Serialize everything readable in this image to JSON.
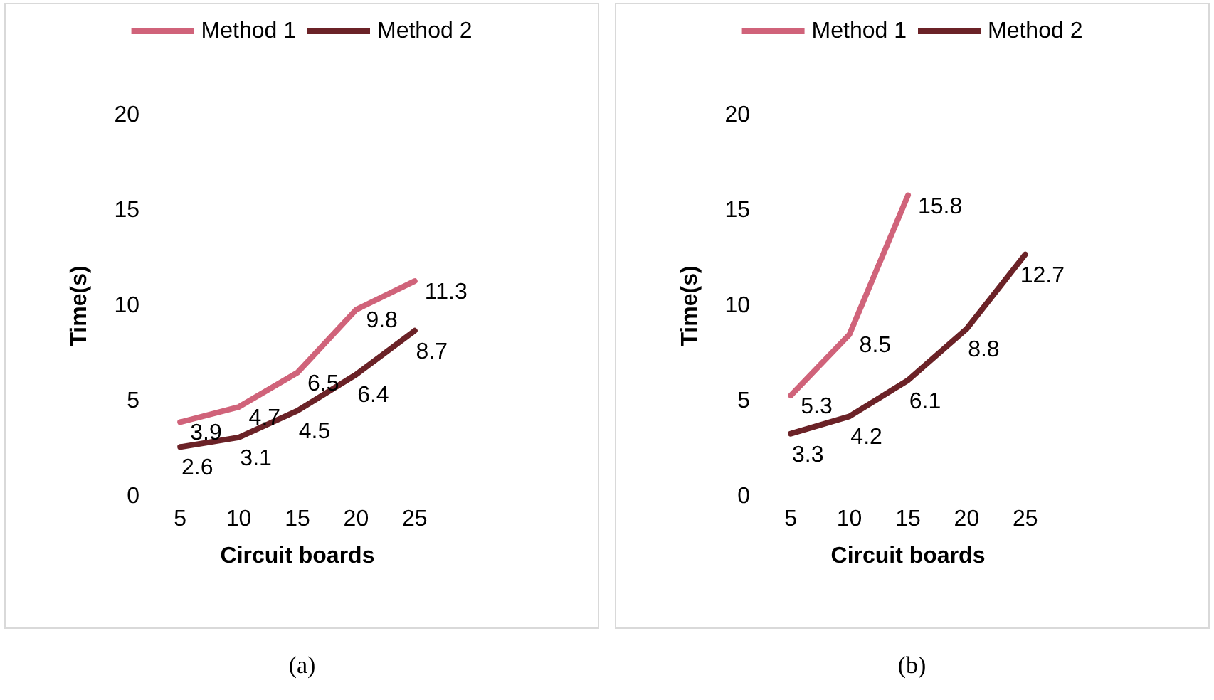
{
  "chart_data": [
    {
      "type": "line",
      "xlabel": "Circuit boards",
      "ylabel": "Time(s)",
      "categories": [
        "5",
        "10",
        "15",
        "20",
        "25"
      ],
      "ylim": [
        0,
        20
      ],
      "yticks": [
        0,
        5,
        10,
        15,
        20
      ],
      "grid": false,
      "legend": "top",
      "marker": "none",
      "data_labels": true,
      "annotations": [
        "(a)"
      ],
      "series": [
        {
          "name": "Method 1",
          "color": "#d0637a",
          "values": [
            3.9,
            4.7,
            6.5,
            9.8,
            11.3
          ]
        },
        {
          "name": "Method 2",
          "color": "#6b2227",
          "values": [
            2.6,
            3.1,
            4.5,
            6.4,
            8.7
          ]
        }
      ]
    },
    {
      "type": "line",
      "xlabel": "Circuit boards",
      "ylabel": "Time(s)",
      "categories": [
        "5",
        "10",
        "15",
        "20",
        "25"
      ],
      "ylim": [
        0,
        20
      ],
      "yticks": [
        0,
        5,
        10,
        15,
        20
      ],
      "grid": false,
      "legend": "top",
      "marker": "none",
      "data_labels": true,
      "annotations": [
        "(b)"
      ],
      "series": [
        {
          "name": "Method 1",
          "color": "#d0637a",
          "values": [
            5.3,
            8.5,
            15.8,
            null,
            null
          ]
        },
        {
          "name": "Method 2",
          "color": "#6b2227",
          "values": [
            3.3,
            4.2,
            6.1,
            8.8,
            12.7
          ]
        }
      ]
    }
  ]
}
